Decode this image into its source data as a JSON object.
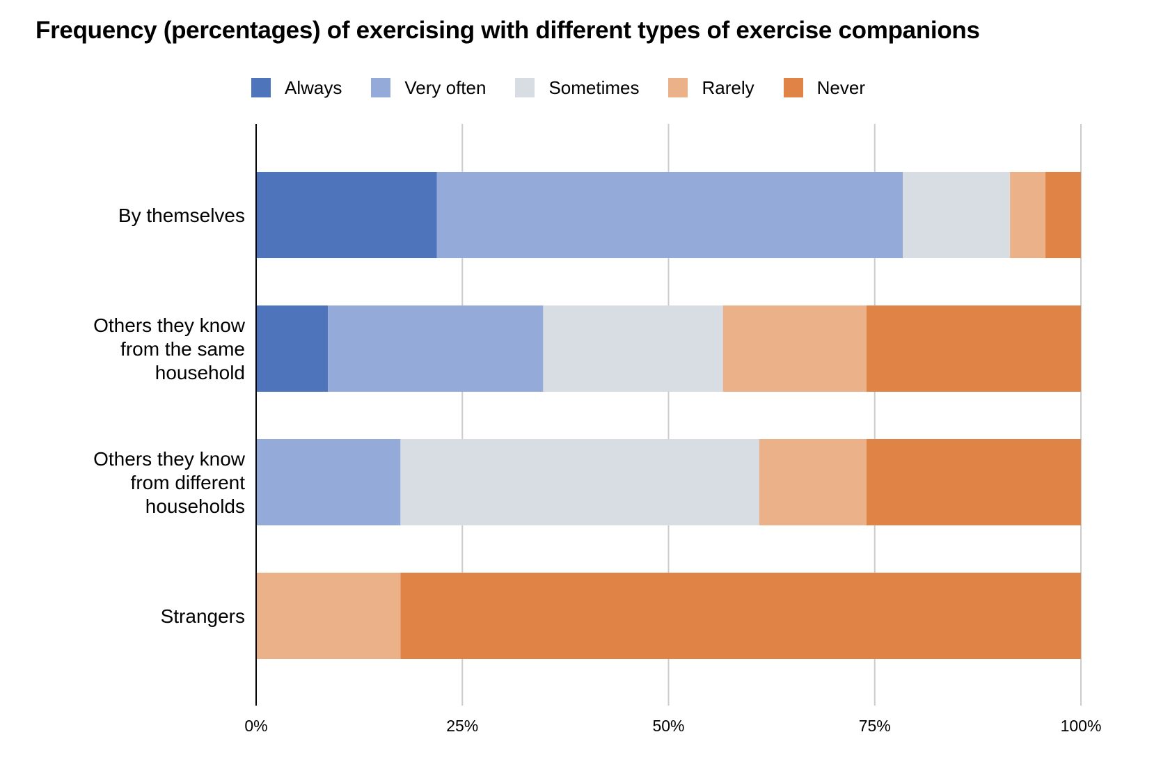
{
  "chart_data": {
    "type": "bar",
    "orientation": "horizontal",
    "stacked": "percent",
    "title": "Frequency (percentages) of exercising with different types of exercise companions",
    "categories": [
      "By themselves",
      "Others they know from the same household",
      "Others they know from different households",
      "Strangers"
    ],
    "category_lines": [
      [
        "By themselves"
      ],
      [
        "Others they know",
        "from the same",
        "household"
      ],
      [
        "Others they know",
        "from different",
        "households"
      ],
      [
        "Strangers"
      ]
    ],
    "series": [
      {
        "name": "Always",
        "color": "#4e74bc",
        "values": [
          21.9,
          8.7,
          0,
          0
        ]
      },
      {
        "name": "Very often",
        "color": "#94abd9",
        "values": [
          56.5,
          26.1,
          17.5,
          0
        ]
      },
      {
        "name": "Sometimes",
        "color": "#d8dce3",
        "values": [
          13.0,
          21.8,
          43.5,
          0
        ]
      },
      {
        "name": "Rarely",
        "color": "#ebb28a",
        "values": [
          4.3,
          17.4,
          13.0,
          17.5
        ]
      },
      {
        "name": "Never",
        "color": "#e08347",
        "values": [
          4.3,
          26.0,
          26.0,
          82.5
        ]
      }
    ],
    "xlim": [
      0,
      100
    ],
    "x_ticks": [
      "0%",
      "25%",
      "50%",
      "75%",
      "100%"
    ],
    "xlabel": "",
    "ylabel": "",
    "grid": "vertical",
    "legend_position": "top"
  }
}
